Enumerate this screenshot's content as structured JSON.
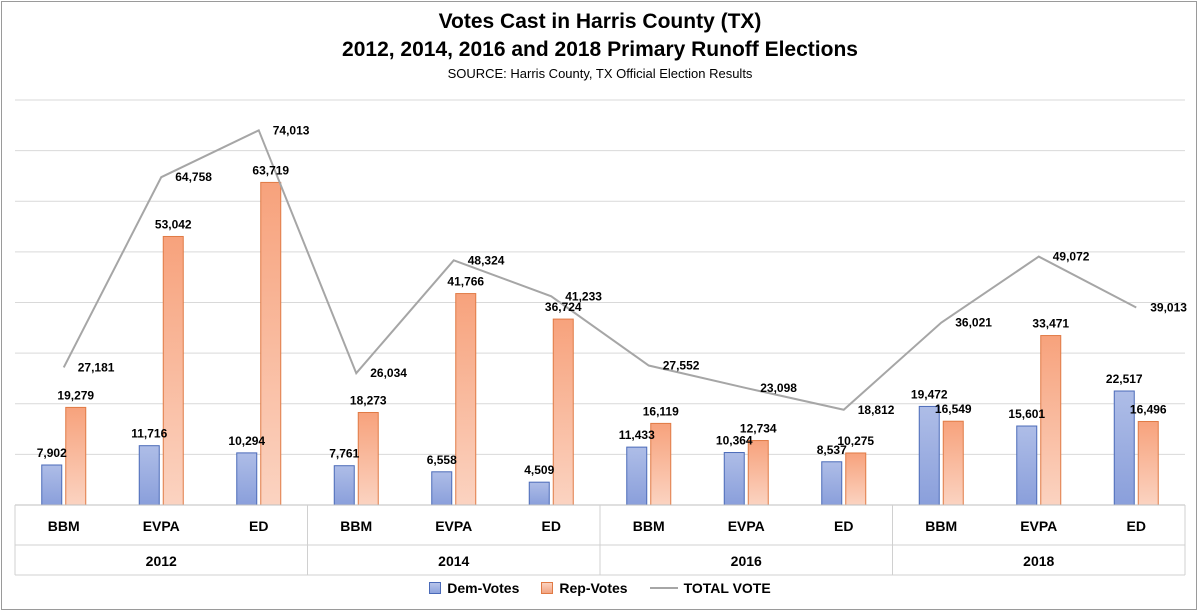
{
  "chart_data": {
    "type": "bar",
    "title": "Votes Cast in Harris County (TX)",
    "subtitle_line2": "2012, 2014, 2016 and 2018 Primary Runoff Elections",
    "source": "SOURCE: Harris County, TX Official Election Results",
    "groups": [
      {
        "year": "2012",
        "categories": [
          "BBM",
          "EVPA",
          "ED"
        ]
      },
      {
        "year": "2014",
        "categories": [
          "BBM",
          "EVPA",
          "ED"
        ]
      },
      {
        "year": "2016",
        "categories": [
          "BBM",
          "EVPA",
          "ED"
        ]
      },
      {
        "year": "2018",
        "categories": [
          "BBM",
          "EVPA",
          "ED"
        ]
      }
    ],
    "series": [
      {
        "name": "Dem-Votes",
        "type": "bar",
        "color": "#8ea3dd",
        "edge": "#4a6ab8",
        "values": [
          7902,
          11716,
          10294,
          7761,
          6558,
          4509,
          11433,
          10364,
          8537,
          19472,
          15601,
          22517
        ],
        "labels": [
          "7,902",
          "11,716",
          "10,294",
          "7,761",
          "6,558",
          "4,509",
          "11,433",
          "10,364",
          "8,537",
          "19,472",
          "15,601",
          "22,517"
        ]
      },
      {
        "name": "Rep-Votes",
        "type": "bar",
        "color": "#f4a888",
        "edge": "#e07a45",
        "values": [
          19279,
          53042,
          63719,
          18273,
          41766,
          36724,
          16119,
          12734,
          10275,
          16549,
          33471,
          16496
        ],
        "labels": [
          "19,279",
          "53,042",
          "63,719",
          "18,273",
          "41,766",
          "36,724",
          "16,119",
          "12,734",
          "10,275",
          "16,549",
          "33,471",
          "16,496"
        ]
      },
      {
        "name": "TOTAL VOTE",
        "type": "line",
        "color": "#a6a6a6",
        "values": [
          27181,
          64758,
          74013,
          26034,
          48324,
          41233,
          27552,
          23098,
          18812,
          36021,
          49072,
          39013
        ],
        "labels": [
          "27,181",
          "64,758",
          "74,013",
          "26,034",
          "48,324",
          "41,233",
          "27,552",
          "23,098",
          "18,812",
          "36,021",
          "49,072",
          "39,013"
        ]
      }
    ],
    "ylim": [
      0,
      80000
    ],
    "ytick_step": 10000,
    "grid": true,
    "legend_position": "bottom"
  }
}
